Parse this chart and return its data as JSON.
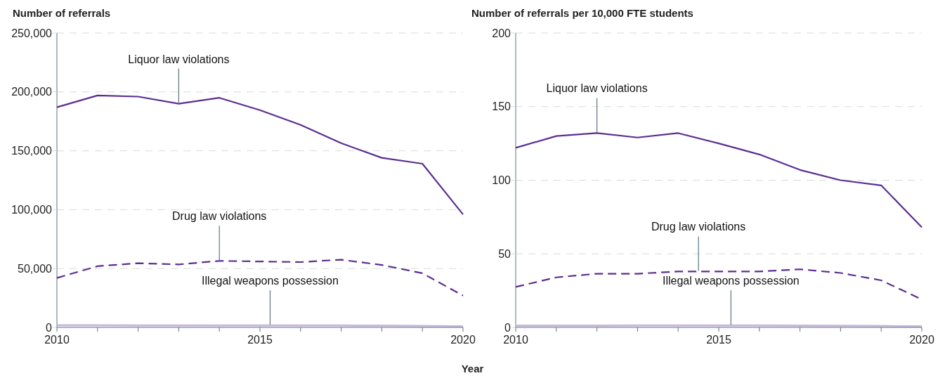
{
  "chart_data": [
    {
      "type": "line",
      "title": "Number of referrals",
      "xlabel": "Year",
      "x": [
        2010,
        2011,
        2012,
        2013,
        2014,
        2015,
        2016,
        2017,
        2018,
        2019,
        2020
      ],
      "xlim": [
        2010,
        2020
      ],
      "xticks": [
        2010,
        {
          "value": 2011,
          "label": null
        },
        {
          "value": 2012,
          "label": null
        },
        {
          "value": 2013,
          "label": null
        },
        {
          "value": 2014,
          "label": null
        },
        2015,
        {
          "value": 2016,
          "label": null
        },
        {
          "value": 2017,
          "label": null
        },
        {
          "value": 2018,
          "label": null
        },
        {
          "value": 2019,
          "label": null
        },
        2020
      ],
      "ylim": [
        0,
        250000
      ],
      "yticks": [
        {
          "value": 0,
          "label": "0"
        },
        {
          "value": 50000,
          "label": "50,000"
        },
        {
          "value": 100000,
          "label": "100,000"
        },
        {
          "value": 150000,
          "label": "150,000"
        },
        {
          "value": 200000,
          "label": "200,000"
        },
        {
          "value": 250000,
          "label": "250,000"
        }
      ],
      "grid": "y",
      "series": [
        {
          "color": "#5c2d91",
          "line_style": "solid",
          "values": [
            187000,
            197000,
            196000,
            190000,
            195000,
            184500,
            172000,
            156500,
            144000,
            139000,
            96000
          ]
        },
        {
          "color": "#5c2d91",
          "line_style": "dashed",
          "values": [
            42000,
            52000,
            54500,
            53500,
            56500,
            56000,
            55500,
            57500,
            53000,
            46000,
            27000
          ]
        },
        {
          "color": "#c8b8dc",
          "line_style": "solid",
          "values": [
            1800,
            1800,
            1700,
            1700,
            1700,
            1700,
            1700,
            1600,
            1500,
            1200,
            900
          ]
        }
      ],
      "annotations": [
        {
          "text": "Liquor law violations",
          "x": 2013,
          "y": 190000
        },
        {
          "text": "Drug law violations",
          "x": 2014,
          "y": 56500
        },
        {
          "text": "Illegal weapons possession",
          "x": 2015.25,
          "y": 1700
        }
      ]
    },
    {
      "type": "line",
      "title": "Number of referrals per 10,000 FTE students",
      "x": [
        2010,
        2011,
        2012,
        2013,
        2014,
        2015,
        2016,
        2017,
        2018,
        2019,
        2020
      ],
      "xlim": [
        2010,
        2020
      ],
      "xticks": [
        2010,
        {
          "value": 2011,
          "label": null
        },
        {
          "value": 2012,
          "label": null
        },
        {
          "value": 2013,
          "label": null
        },
        {
          "value": 2014,
          "label": null
        },
        2015,
        {
          "value": 2016,
          "label": null
        },
        {
          "value": 2017,
          "label": null
        },
        {
          "value": 2018,
          "label": null
        },
        {
          "value": 2019,
          "label": null
        },
        2020
      ],
      "ylim": [
        0,
        200
      ],
      "yticks": [
        0,
        50,
        100,
        150,
        200
      ],
      "grid": "y",
      "series": [
        {
          "color": "#5c2d91",
          "line_style": "solid",
          "values": [
            122,
            130,
            132,
            129,
            132,
            125,
            117.5,
            107,
            100,
            96.5,
            68
          ]
        },
        {
          "color": "#5c2d91",
          "line_style": "dashed",
          "values": [
            27.5,
            34,
            36.5,
            36.5,
            38,
            38,
            38,
            39.5,
            37,
            32,
            19
          ]
        },
        {
          "color": "#c8b8dc",
          "line_style": "solid",
          "values": [
            1.2,
            1.2,
            1.2,
            1.3,
            1.3,
            1.3,
            1.3,
            1.2,
            1.1,
            0.9,
            0.7
          ]
        }
      ],
      "annotations": [
        {
          "text": "Liquor law violations",
          "x": 2012,
          "y": 132
        },
        {
          "text": "Drug law violations",
          "x": 2014.5,
          "y": 38
        },
        {
          "text": "Illegal weapons possession",
          "x": 2015.3,
          "y": 1.3
        }
      ]
    }
  ]
}
